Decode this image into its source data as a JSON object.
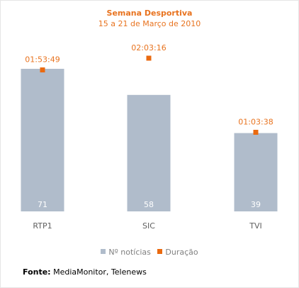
{
  "chart_data": {
    "type": "bar",
    "title": "Semana Desportiva",
    "subtitle": "15 a 21 de Março de 2010",
    "categories": [
      "RTP1",
      "SIC",
      "TVI"
    ],
    "series": [
      {
        "name": "Nº notícias",
        "type": "bar",
        "values": [
          71,
          58,
          39
        ],
        "labels": [
          "71",
          "58",
          "39"
        ],
        "color": "#b0bccb"
      },
      {
        "name": "Duração",
        "type": "point",
        "values_seconds": [
          6829,
          7396,
          3818
        ],
        "labels": [
          "01:53:49",
          "02:03:16",
          "01:03:38"
        ],
        "color": "#ea6a10"
      }
    ],
    "ylim": [
      0,
      71
    ],
    "grid": false,
    "legend_position": "bottom"
  },
  "source": {
    "label": "Fonte:",
    "text": "MediaMonitor, Telenews"
  },
  "colors": {
    "title": "#e8731f",
    "bar_label": "#ffffff",
    "point_label": "#e8731f",
    "axis_label": "#606060"
  }
}
